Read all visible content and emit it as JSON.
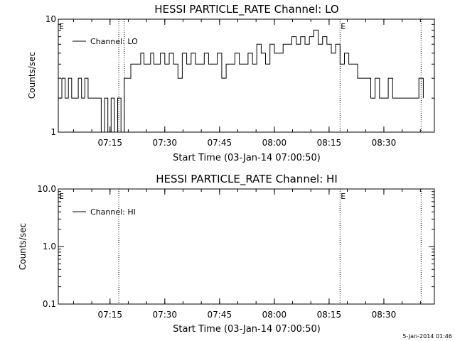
{
  "stamp": "5-Jan-2014 01:46",
  "chart_data": [
    {
      "type": "line",
      "title": "HESSI PARTICLE_RATE Channel: LO",
      "xlabel": "Start Time (03-Jan-14 07:00:50)",
      "ylabel": "Counts/sec",
      "yscale": "log",
      "ylim": [
        1,
        10
      ],
      "xlim_min": [
        7.0139,
        8.7306
      ],
      "x_tick_labels": [
        "07:15",
        "07:30",
        "07:45",
        "08:00",
        "08:15",
        "08:30"
      ],
      "x_ticks_min": [
        7.25,
        7.5,
        7.75,
        8.0,
        8.25,
        8.5
      ],
      "y_tick_labels": [
        "1",
        "10"
      ],
      "y_ticks": [
        1,
        10
      ],
      "legend": {
        "position": "top-left",
        "entries": [
          "Channel: LO"
        ]
      },
      "event_marker_label": "E",
      "event_marker_x_min": [
        7.0139,
        8.3
      ],
      "dotted_lines_x_min": [
        7.29,
        7.315,
        8.3,
        8.67
      ],
      "series": [
        {
          "name": "Channel: LO",
          "x": [
            7.014,
            7.03,
            7.045,
            7.06,
            7.075,
            7.09,
            7.105,
            7.12,
            7.135,
            7.15,
            7.165,
            7.18,
            7.195,
            7.21,
            7.225,
            7.24,
            7.255,
            7.27,
            7.285,
            7.3,
            7.315,
            7.33,
            7.345,
            7.36,
            7.375,
            7.39,
            7.405,
            7.42,
            7.435,
            7.45,
            7.465,
            7.48,
            7.5,
            7.52,
            7.54,
            7.56,
            7.58,
            7.6,
            7.62,
            7.64,
            7.66,
            7.68,
            7.7,
            7.72,
            7.74,
            7.76,
            7.78,
            7.8,
            7.82,
            7.84,
            7.86,
            7.88,
            7.9,
            7.92,
            7.94,
            7.96,
            7.98,
            8.0,
            8.02,
            8.04,
            8.06,
            8.08,
            8.1,
            8.12,
            8.14,
            8.16,
            8.18,
            8.2,
            8.22,
            8.24,
            8.26,
            8.28,
            8.3,
            8.32,
            8.34,
            8.36,
            8.38,
            8.4,
            8.42,
            8.44,
            8.46,
            8.48,
            8.5,
            8.52,
            8.54,
            8.56,
            8.58,
            8.6,
            8.62,
            8.64,
            8.66,
            8.68
          ],
          "values": [
            2,
            3,
            2,
            3,
            2,
            2,
            3,
            2,
            3,
            2,
            2,
            2,
            2,
            1,
            2,
            1,
            2,
            1,
            2,
            1,
            3,
            3,
            4,
            4,
            4,
            5,
            4,
            4,
            5,
            4,
            4,
            5,
            4,
            5,
            4,
            3,
            5,
            4,
            5,
            4,
            4,
            5,
            4,
            4,
            5,
            3,
            4,
            4,
            5,
            4,
            4,
            5,
            4,
            6,
            5,
            4,
            6,
            5,
            5,
            6,
            6,
            7,
            6,
            7,
            6,
            7,
            8,
            6,
            7,
            6,
            5,
            6,
            4,
            5,
            4,
            4,
            3,
            3,
            3,
            2,
            3,
            2,
            2,
            3,
            2,
            2,
            2,
            2,
            2,
            2,
            3,
            2
          ]
        }
      ]
    },
    {
      "type": "line",
      "title": "HESSI PARTICLE_RATE Channel: HI",
      "xlabel": "Start Time (03-Jan-14 07:00:50)",
      "ylabel": "Counts/sec",
      "yscale": "log",
      "ylim": [
        0.1,
        10
      ],
      "xlim_min": [
        7.0139,
        8.7306
      ],
      "x_tick_labels": [
        "07:15",
        "07:30",
        "07:45",
        "08:00",
        "08:15",
        "08:30"
      ],
      "x_ticks_min": [
        7.25,
        7.5,
        7.75,
        8.0,
        8.25,
        8.5
      ],
      "y_tick_labels": [
        "0.1",
        "1.0",
        "10.0"
      ],
      "y_ticks": [
        0.1,
        1.0,
        10.0
      ],
      "legend": {
        "position": "top-left",
        "entries": [
          "Channel: HI"
        ]
      },
      "event_marker_label": "E",
      "event_marker_x_min": [
        7.0139,
        8.3
      ],
      "dotted_lines_x_min": [
        7.29,
        8.3,
        8.67
      ],
      "series": [
        {
          "name": "Channel: HI",
          "x": [],
          "values": []
        }
      ]
    }
  ]
}
